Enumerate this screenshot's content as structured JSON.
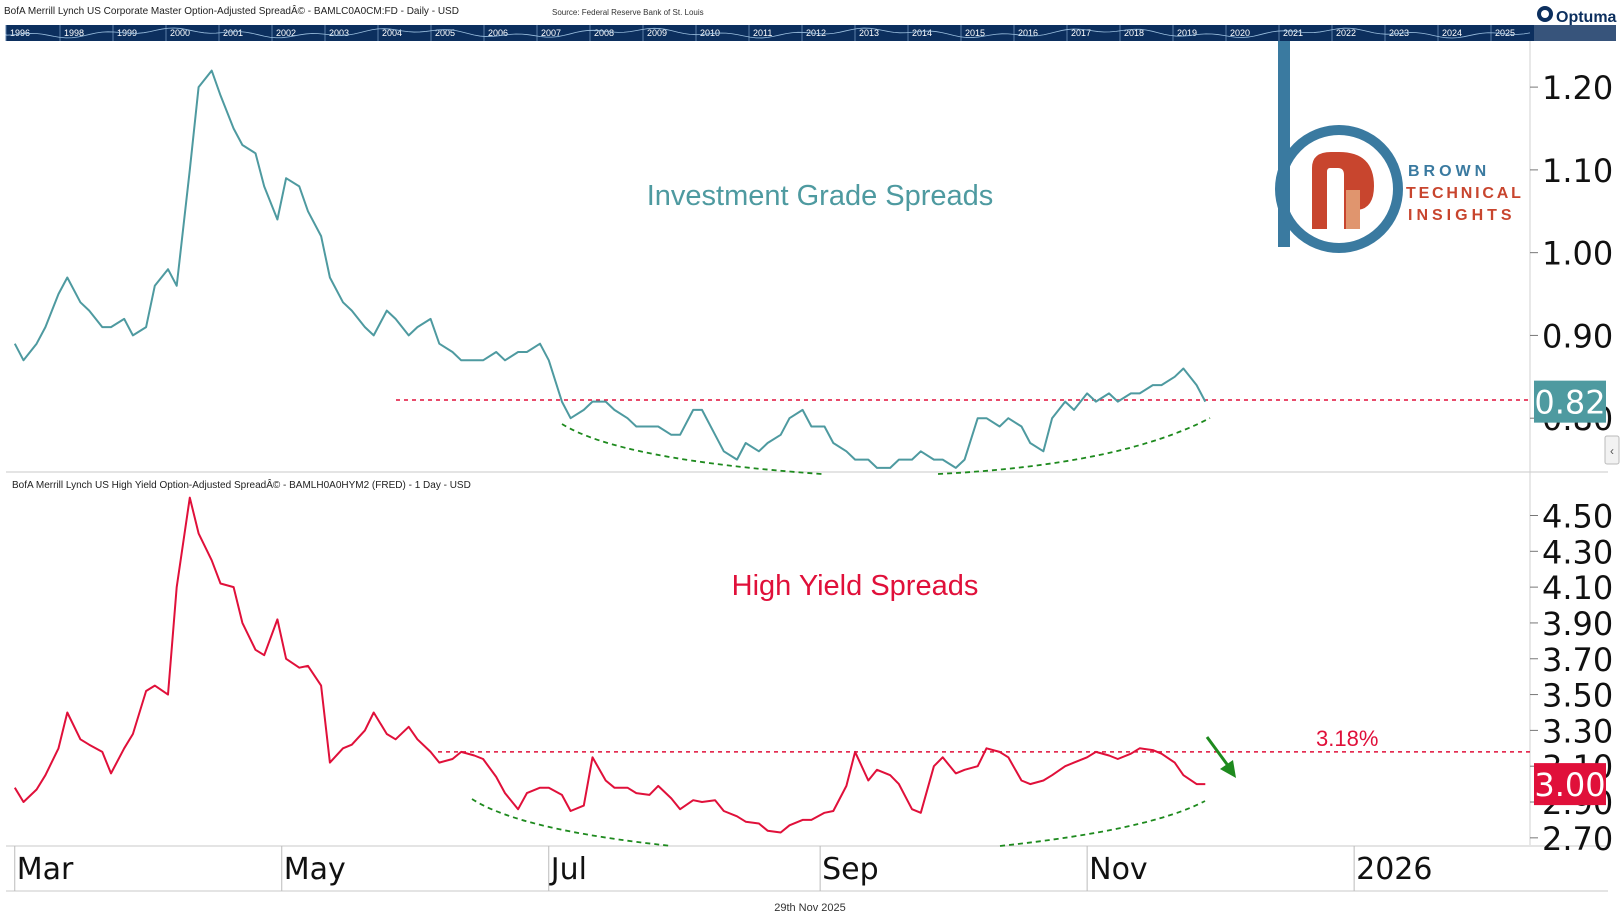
{
  "header": {
    "top_title": "BofA Merrill Lynch US Corporate Master Option-Adjusted SpreadÂ© - BAMLC0A0CM:FD - Daily - USD",
    "source": "Source: Federal Reserve Bank of St. Louis",
    "brand": "Optuma"
  },
  "timeline": {
    "years": [
      "1996",
      "1998",
      "1999",
      "2000",
      "2001",
      "2002",
      "2003",
      "2004",
      "2005",
      "2006",
      "2007",
      "2008",
      "2009",
      "2010",
      "2011",
      "2012",
      "2013",
      "2014",
      "2015",
      "2016",
      "2017",
      "2018",
      "2019",
      "2020",
      "2021",
      "2022",
      "2023",
      "2024",
      "2025"
    ]
  },
  "logo": {
    "line1": "BROWN",
    "line2": "TECHNICAL",
    "line3": "INSIGHTS"
  },
  "footer": {
    "date": "29th Nov 2025"
  },
  "colors": {
    "ig_line": "#4e9aa0",
    "hy_line": "#e0103a",
    "support": "#e0103a",
    "base_curve": "#1e8a1e",
    "arrow": "#1e8a1e",
    "ig_badge": "#4e9aa0",
    "hy_badge": "#e0103a",
    "header_band": "#0c2f5e"
  },
  "chart_data": [
    {
      "type": "line",
      "panel": "top",
      "title": "Investment Grade Spreads",
      "ylim": [
        0.735,
        1.24
      ],
      "y_ticks": [
        0.8,
        0.9,
        1.0,
        1.1,
        1.2
      ],
      "y_tick_labels": [
        "0.80",
        "0.90",
        "1.00",
        "1.10",
        "1.20"
      ],
      "last_value_label": "0.82",
      "reference_line": 0.822,
      "grid": false,
      "x_labels": [
        "Mar",
        "May",
        "Jul",
        "Sep",
        "Nov",
        "2026"
      ],
      "series": [
        {
          "x": [
            "2025-03-01",
            "2025-03-03",
            "2025-03-06",
            "2025-03-08",
            "2025-03-11",
            "2025-03-13",
            "2025-03-16",
            "2025-03-18",
            "2025-03-21",
            "2025-03-23",
            "2025-03-26",
            "2025-03-28",
            "2025-03-31",
            "2025-04-02",
            "2025-04-05",
            "2025-04-07",
            "2025-04-10",
            "2025-04-12",
            "2025-04-15",
            "2025-04-17",
            "2025-04-20",
            "2025-04-22",
            "2025-04-25",
            "2025-04-27",
            "2025-04-30",
            "2025-05-02",
            "2025-05-05",
            "2025-05-07",
            "2025-05-10",
            "2025-05-12",
            "2025-05-15",
            "2025-05-17",
            "2025-05-20",
            "2025-05-22",
            "2025-05-25",
            "2025-05-27",
            "2025-05-30",
            "2025-06-01",
            "2025-06-04",
            "2025-06-06",
            "2025-06-09",
            "2025-06-11",
            "2025-06-14",
            "2025-06-16",
            "2025-06-19",
            "2025-06-21",
            "2025-06-24",
            "2025-06-26",
            "2025-06-29",
            "2025-07-01",
            "2025-07-04",
            "2025-07-06",
            "2025-07-09",
            "2025-07-11",
            "2025-07-14",
            "2025-07-16",
            "2025-07-19",
            "2025-07-21",
            "2025-07-24",
            "2025-07-26",
            "2025-07-29",
            "2025-07-31",
            "2025-08-03",
            "2025-08-05",
            "2025-08-08",
            "2025-08-10",
            "2025-08-13",
            "2025-08-15",
            "2025-08-18",
            "2025-08-20",
            "2025-08-23",
            "2025-08-25",
            "2025-08-28",
            "2025-08-30",
            "2025-09-02",
            "2025-09-04",
            "2025-09-07",
            "2025-09-09",
            "2025-09-12",
            "2025-09-14",
            "2025-09-17",
            "2025-09-19",
            "2025-09-22",
            "2025-09-24",
            "2025-09-27",
            "2025-09-29",
            "2025-10-02",
            "2025-10-04",
            "2025-10-07",
            "2025-10-09",
            "2025-10-12",
            "2025-10-14",
            "2025-10-17",
            "2025-10-19",
            "2025-10-22",
            "2025-10-24",
            "2025-10-27",
            "2025-10-29",
            "2025-11-01",
            "2025-11-03",
            "2025-11-06",
            "2025-11-08",
            "2025-11-11",
            "2025-11-13",
            "2025-11-16",
            "2025-11-18",
            "2025-11-21",
            "2025-11-23",
            "2025-11-26",
            "2025-11-28"
          ],
          "values": [
            0.89,
            0.87,
            0.89,
            0.91,
            0.95,
            0.97,
            0.94,
            0.93,
            0.91,
            0.91,
            0.92,
            0.9,
            0.91,
            0.96,
            0.98,
            0.96,
            1.1,
            1.2,
            1.22,
            1.19,
            1.15,
            1.13,
            1.12,
            1.08,
            1.04,
            1.09,
            1.08,
            1.05,
            1.02,
            0.97,
            0.94,
            0.93,
            0.91,
            0.9,
            0.93,
            0.92,
            0.9,
            0.91,
            0.92,
            0.89,
            0.88,
            0.87,
            0.87,
            0.87,
            0.88,
            0.87,
            0.88,
            0.88,
            0.89,
            0.87,
            0.82,
            0.8,
            0.81,
            0.82,
            0.82,
            0.81,
            0.8,
            0.79,
            0.79,
            0.79,
            0.78,
            0.78,
            0.81,
            0.81,
            0.78,
            0.76,
            0.75,
            0.77,
            0.76,
            0.77,
            0.78,
            0.8,
            0.81,
            0.79,
            0.79,
            0.77,
            0.76,
            0.75,
            0.75,
            0.74,
            0.74,
            0.75,
            0.75,
            0.76,
            0.75,
            0.75,
            0.74,
            0.75,
            0.8,
            0.8,
            0.79,
            0.8,
            0.79,
            0.77,
            0.76,
            0.8,
            0.82,
            0.81,
            0.83,
            0.82,
            0.83,
            0.82,
            0.83,
            0.83,
            0.84,
            0.84,
            0.85,
            0.86,
            0.84,
            0.82
          ]
        }
      ]
    },
    {
      "type": "line",
      "panel": "bottom",
      "header": "BofA Merrill Lynch US High Yield Option-Adjusted SpreadÂ© - BAMLH0A0HYM2 (FRED) - 1 Day - USD",
      "title": "High Yield Spreads",
      "ylim": [
        2.66,
        4.62
      ],
      "y_ticks": [
        2.7,
        2.9,
        3.1,
        3.3,
        3.5,
        3.7,
        3.9,
        4.1,
        4.3,
        4.5
      ],
      "y_tick_labels": [
        "2.70",
        "2.90",
        "3.10",
        "3.30",
        "3.50",
        "3.70",
        "3.90",
        "4.10",
        "4.30",
        "4.50"
      ],
      "last_value_label": "3.00",
      "reference_line": 3.18,
      "reference_label": "3.18%",
      "grid": false,
      "x_labels": [
        "Mar",
        "May",
        "Jul",
        "Sep",
        "Nov",
        "2026"
      ],
      "series": [
        {
          "x": [
            "2025-03-01",
            "2025-03-03",
            "2025-03-06",
            "2025-03-08",
            "2025-03-11",
            "2025-03-13",
            "2025-03-16",
            "2025-03-18",
            "2025-03-21",
            "2025-03-23",
            "2025-03-26",
            "2025-03-28",
            "2025-03-31",
            "2025-04-02",
            "2025-04-05",
            "2025-04-07",
            "2025-04-10",
            "2025-04-12",
            "2025-04-15",
            "2025-04-17",
            "2025-04-20",
            "2025-04-22",
            "2025-04-25",
            "2025-04-27",
            "2025-04-30",
            "2025-05-02",
            "2025-05-05",
            "2025-05-07",
            "2025-05-10",
            "2025-05-12",
            "2025-05-15",
            "2025-05-17",
            "2025-05-20",
            "2025-05-22",
            "2025-05-25",
            "2025-05-27",
            "2025-05-30",
            "2025-06-01",
            "2025-06-04",
            "2025-06-06",
            "2025-06-09",
            "2025-06-11",
            "2025-06-14",
            "2025-06-16",
            "2025-06-19",
            "2025-06-21",
            "2025-06-24",
            "2025-06-26",
            "2025-06-29",
            "2025-07-01",
            "2025-07-04",
            "2025-07-06",
            "2025-07-09",
            "2025-07-11",
            "2025-07-14",
            "2025-07-16",
            "2025-07-19",
            "2025-07-21",
            "2025-07-24",
            "2025-07-26",
            "2025-07-29",
            "2025-07-31",
            "2025-08-03",
            "2025-08-05",
            "2025-08-08",
            "2025-08-10",
            "2025-08-13",
            "2025-08-15",
            "2025-08-18",
            "2025-08-20",
            "2025-08-23",
            "2025-08-25",
            "2025-08-28",
            "2025-08-30",
            "2025-09-02",
            "2025-09-04",
            "2025-09-07",
            "2025-09-09",
            "2025-09-12",
            "2025-09-14",
            "2025-09-17",
            "2025-09-19",
            "2025-09-22",
            "2025-09-24",
            "2025-09-27",
            "2025-09-29",
            "2025-10-02",
            "2025-10-04",
            "2025-10-07",
            "2025-10-09",
            "2025-10-12",
            "2025-10-14",
            "2025-10-17",
            "2025-10-19",
            "2025-10-22",
            "2025-10-24",
            "2025-10-27",
            "2025-10-29",
            "2025-11-01",
            "2025-11-03",
            "2025-11-06",
            "2025-11-08",
            "2025-11-11",
            "2025-11-13",
            "2025-11-16",
            "2025-11-18",
            "2025-11-21",
            "2025-11-23",
            "2025-11-26",
            "2025-11-28"
          ],
          "values": [
            2.98,
            2.9,
            2.97,
            3.05,
            3.2,
            3.4,
            3.25,
            3.22,
            3.18,
            3.06,
            3.2,
            3.28,
            3.52,
            3.55,
            3.5,
            4.1,
            4.6,
            4.4,
            4.25,
            4.12,
            4.1,
            3.9,
            3.75,
            3.72,
            3.92,
            3.7,
            3.65,
            3.66,
            3.55,
            3.12,
            3.2,
            3.22,
            3.3,
            3.4,
            3.28,
            3.25,
            3.32,
            3.25,
            3.18,
            3.12,
            3.14,
            3.18,
            3.16,
            3.14,
            3.04,
            2.95,
            2.86,
            2.95,
            2.98,
            2.98,
            2.94,
            2.85,
            2.88,
            3.15,
            3.02,
            2.98,
            2.98,
            2.95,
            2.94,
            2.99,
            2.92,
            2.86,
            2.91,
            2.9,
            2.91,
            2.85,
            2.82,
            2.79,
            2.78,
            2.74,
            2.73,
            2.77,
            2.8,
            2.8,
            2.84,
            2.85,
            2.99,
            3.18,
            3.02,
            3.08,
            3.05,
            3.0,
            2.86,
            2.84,
            3.1,
            3.15,
            3.06,
            3.08,
            3.1,
            3.2,
            3.18,
            3.15,
            3.02,
            3.0,
            3.02,
            3.05,
            3.1,
            3.12,
            3.15,
            3.18,
            3.16,
            3.14,
            3.17,
            3.2,
            3.19,
            3.17,
            3.12,
            3.05,
            3.0,
            3.0
          ]
        }
      ]
    }
  ]
}
